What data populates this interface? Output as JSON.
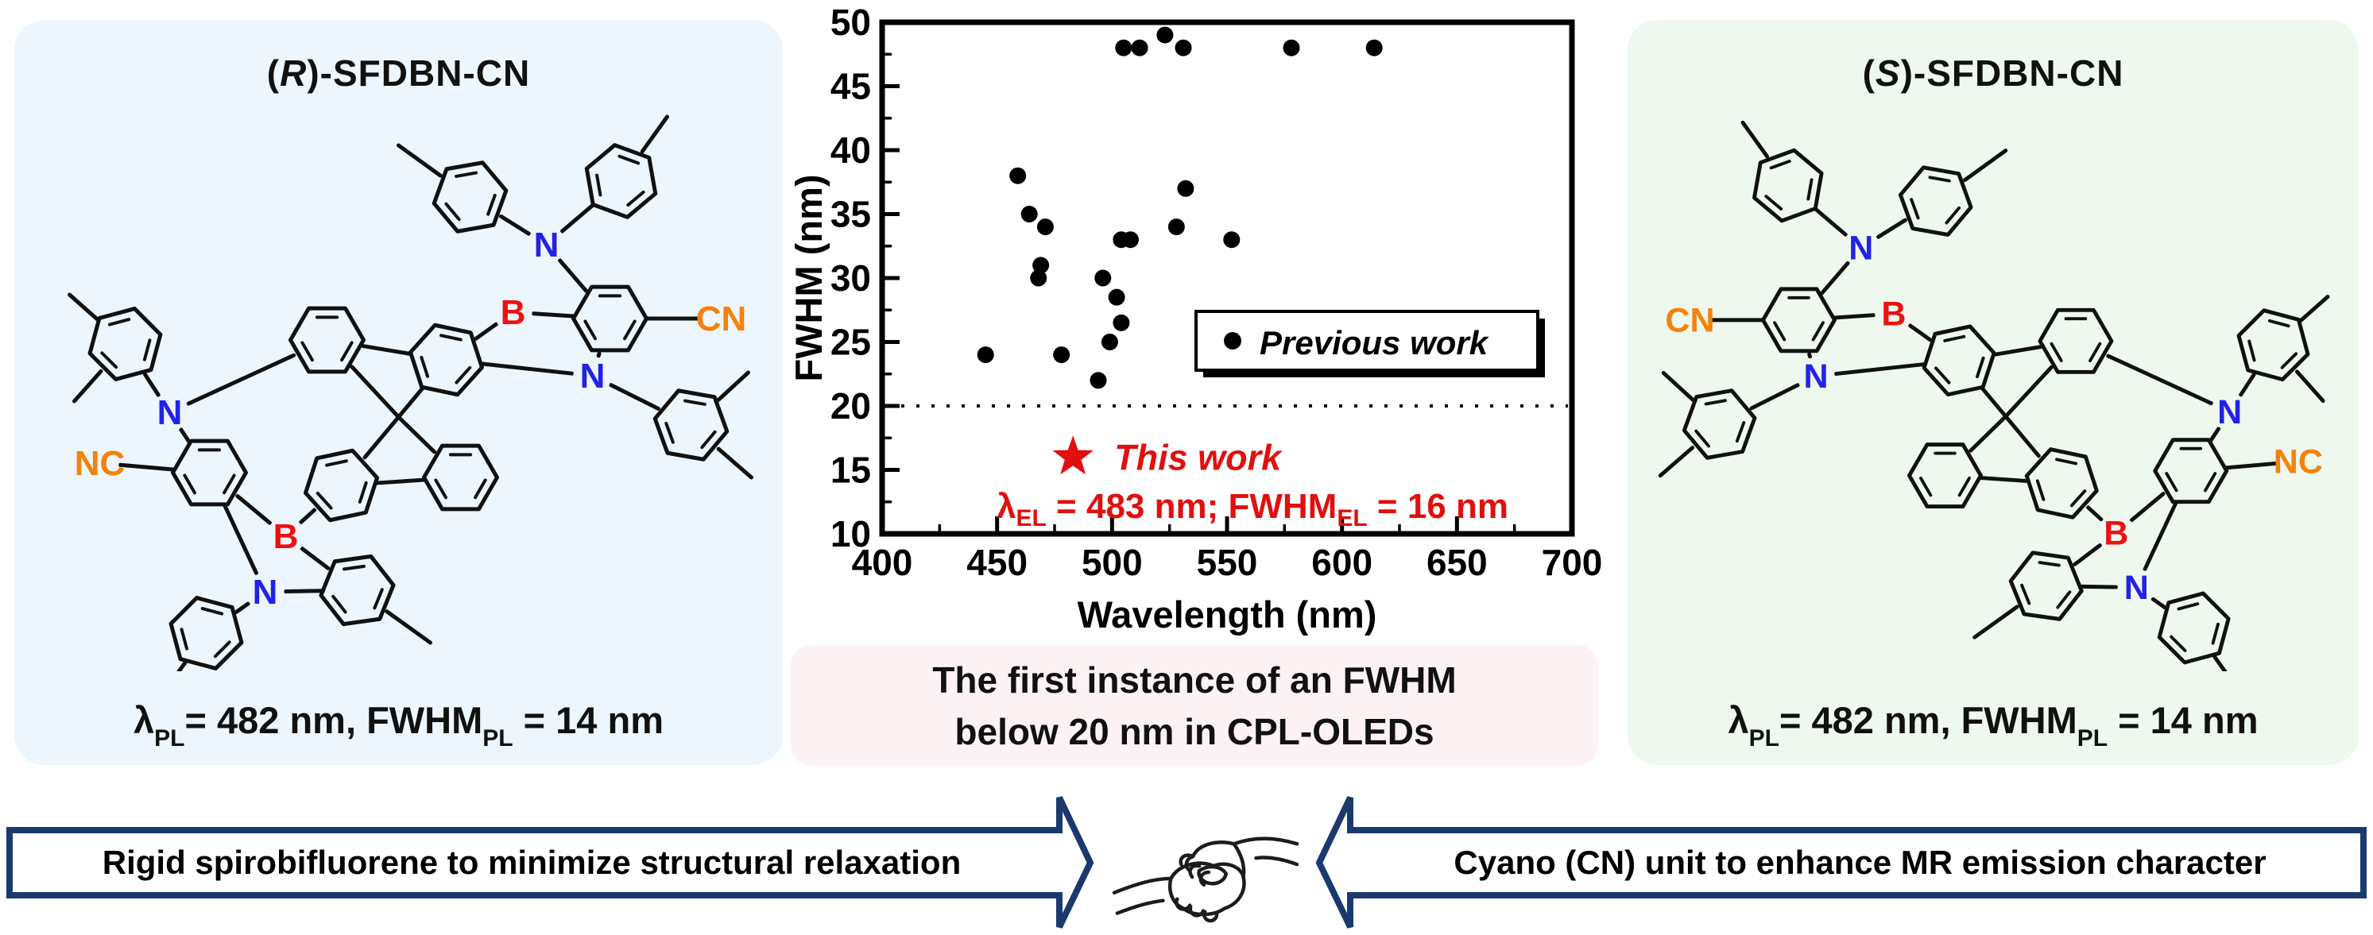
{
  "left_panel": {
    "title": {
      "open": "(",
      "stereo": "R",
      "rest": ")-SFDBN-CN"
    },
    "molecule": {
      "atoms": {
        "n1": "N",
        "n2": "N",
        "n3": "N",
        "n4": "N",
        "b1": "B",
        "b2": "B",
        "cn": "CN",
        "nc": "NC"
      }
    },
    "result": {
      "lambda_symbol": "λ",
      "lambda_sub": "PL",
      "mid": "= 482 nm, FWHM",
      "fwhm_sub": "PL",
      "end": " = 14 nm"
    }
  },
  "right_panel": {
    "title": {
      "open": "(",
      "stereo": "S",
      "rest": ")-SFDBN-CN"
    },
    "molecule": {
      "atoms": {
        "n1": "N",
        "n2": "N",
        "n3": "N",
        "n4": "N",
        "b1": "B",
        "b2": "B",
        "cn": "CN",
        "nc": "NC"
      }
    },
    "result": {
      "lambda_symbol": "λ",
      "lambda_sub": "PL",
      "mid": "= 482 nm, FWHM",
      "fwhm_sub": "PL",
      "end": " = 14 nm"
    }
  },
  "center": {
    "highlight_line1": "The first instance of an FWHM",
    "highlight_line2": "below 20 nm in CPL-OLEDs"
  },
  "chart_data": {
    "type": "scatter",
    "xlabel": "Wavelength (nm)",
    "ylabel": "FWHM (nm)",
    "xlim": [
      400,
      700
    ],
    "ylim": [
      10,
      50
    ],
    "xticks": [
      400,
      450,
      500,
      550,
      600,
      650,
      700
    ],
    "yticks": [
      10,
      15,
      20,
      25,
      30,
      35,
      40,
      45,
      50
    ],
    "x_minor_step": 25,
    "y_minor_step": 2.5,
    "threshold_line_y": 20,
    "grid": false,
    "legend_position": "right-middle",
    "series": [
      {
        "name": "Previous work",
        "marker": "circle",
        "color": "#000000",
        "points": [
          [
            445,
            24
          ],
          [
            459,
            38
          ],
          [
            464,
            35
          ],
          [
            468,
            30
          ],
          [
            469,
            31
          ],
          [
            471,
            34
          ],
          [
            478,
            24
          ],
          [
            494,
            22
          ],
          [
            496,
            30
          ],
          [
            499,
            25
          ],
          [
            502,
            28.5
          ],
          [
            504,
            26.5
          ],
          [
            504,
            33
          ],
          [
            508,
            33
          ],
          [
            505,
            48
          ],
          [
            512,
            48
          ],
          [
            523,
            49
          ],
          [
            531,
            48
          ],
          [
            528,
            34
          ],
          [
            532,
            37
          ],
          [
            552,
            33
          ],
          [
            578,
            48
          ],
          [
            614,
            48
          ]
        ]
      },
      {
        "name": "This work",
        "marker": "star",
        "color": "#e0100e",
        "lambda_el_nm": 483,
        "fwhm_el_nm": 16,
        "points": [
          [
            483,
            16
          ]
        ]
      }
    ],
    "annotation": {
      "line1": "This work",
      "lambda_symbol": "λ",
      "lambda_sub": "EL",
      "mid": " = 483 nm; FWHM",
      "fwhm_sub": "EL",
      "end": " = 16 nm"
    }
  },
  "banner": {
    "left_arrow_text": "Rigid spirobifluorene to minimize structural relaxation",
    "right_arrow_text": "Cyano (CN) unit to enhance MR emission character",
    "handshake_icon": "handshake-line-art"
  },
  "colors": {
    "panel_blue": "#edf5fd",
    "panel_green": "#eef8ee",
    "highlight_pink": "#fcf1f3",
    "navy": "#1a3a6e",
    "accent_red": "#e0100e",
    "atom_blue": "#2222e6",
    "atom_red": "#ee1010",
    "atom_orange": "#f5820a",
    "bond_black": "#111111"
  }
}
